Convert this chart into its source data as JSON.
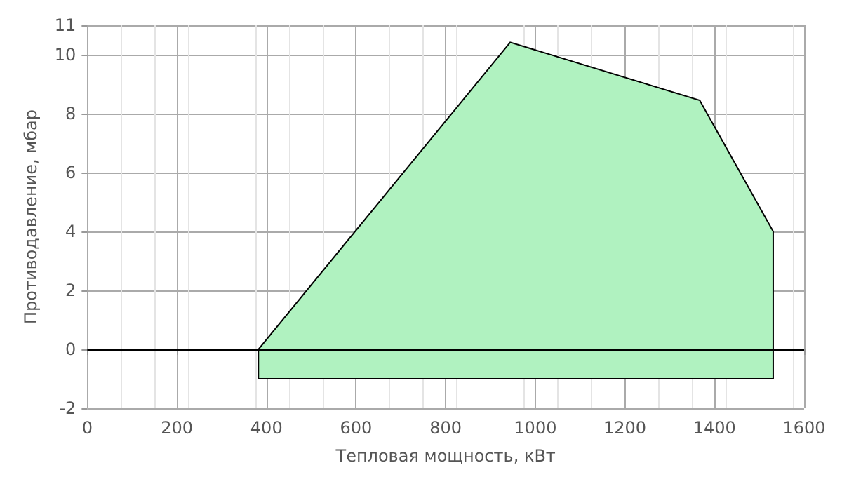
{
  "chart_data": {
    "type": "area",
    "xlabel": "Тепловая мощность, кВт",
    "ylabel": "Противодавление, мбар",
    "series": [
      {
        "color": "#b0f2c0",
        "x": [
          382,
          382,
          944,
          1367,
          1531,
          1531
        ],
        "values": [
          -1,
          0,
          10.42,
          8.45,
          4,
          -1
        ]
      }
    ],
    "xlim": [
      0,
      1600
    ],
    "xticks": [
      0,
      200,
      400,
      600,
      800,
      1000,
      1200,
      1400,
      1600
    ],
    "ylim": [
      -2,
      11
    ],
    "yticks": [
      -2,
      0,
      2,
      4,
      6,
      8,
      10,
      11
    ],
    "ref_lines": [
      {
        "axis": "y",
        "value": 0,
        "color": "#000000"
      }
    ],
    "grid": true
  }
}
